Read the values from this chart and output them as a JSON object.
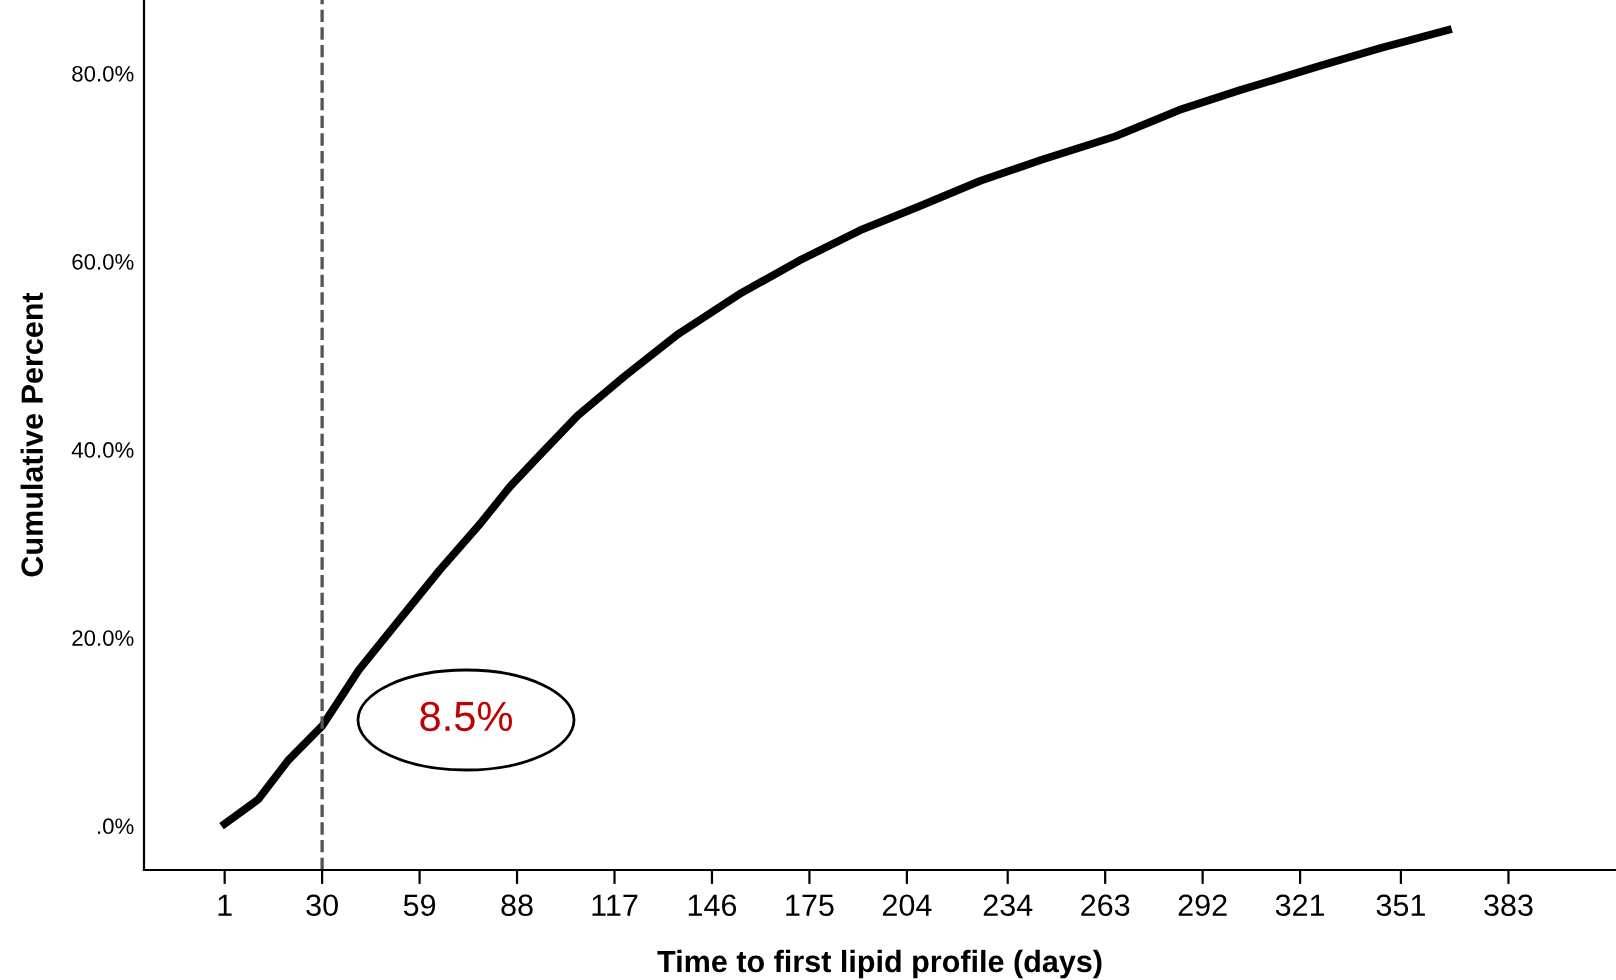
{
  "chart_data": {
    "type": "line",
    "xlabel": "Time to first lipid profile (days)",
    "ylabel": "Cumulative Percent",
    "series": [
      {
        "color": "#000000",
        "x": [
          1,
          11,
          20,
          30,
          41,
          53,
          65,
          77,
          86,
          95,
          106,
          120,
          136,
          154,
          172,
          190,
          208,
          226,
          244,
          266,
          285,
          303,
          327,
          345,
          365
        ],
        "values": [
          0.2,
          2.8,
          7,
          10.6,
          16.6,
          21.9,
          27.2,
          32.1,
          36.1,
          39.5,
          43.6,
          47.8,
          52.3,
          56.5,
          60.1,
          63.3,
          65.9,
          68.6,
          70.8,
          73.3,
          76.1,
          78.2,
          80.8,
          82.7,
          84.6
        ]
      }
    ],
    "xlim": [
      -23,
      415
    ],
    "xticks": [
      1,
      30,
      59,
      88,
      117,
      146,
      175,
      204,
      234,
      263,
      292,
      321,
      351,
      383
    ],
    "ylim": [
      -4.7,
      87.8
    ],
    "yticks": [
      {
        "value": 0,
        "label": ".0%"
      },
      {
        "value": 20,
        "label": "20.0%"
      },
      {
        "value": 40,
        "label": "40.0%"
      },
      {
        "value": 60,
        "label": "60.0%"
      },
      {
        "value": 80,
        "label": "80.0%"
      }
    ],
    "ref_lines": [
      {
        "axis": "x",
        "value": 30,
        "line_style": "dashed",
        "color": "#555555"
      }
    ],
    "annotations": [
      "8.5%"
    ],
    "grid": false,
    "legend": false,
    "marker": "none",
    "line_style": "solid"
  }
}
